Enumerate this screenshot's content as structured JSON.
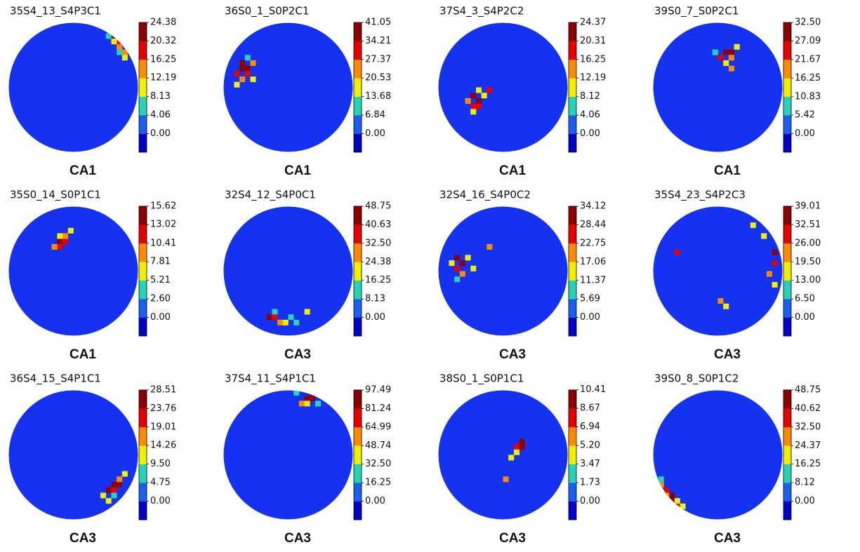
{
  "colormap": [
    "#0000c8",
    "#1c5ff0",
    "#27d3b5",
    "#f0f000",
    "#ff8c00",
    "#e60000",
    "#8b0000"
  ],
  "region_colors": {
    "CA1": "#5b8fd0",
    "CA3": "#953735"
  },
  "chart_data": [
    {
      "type": "heatmap",
      "title": "35S4_13_S4P3C1",
      "region": "CA1",
      "x": [
        19,
        20,
        20,
        21,
        19,
        20,
        21,
        18
      ],
      "y": [
        2,
        3,
        4,
        5,
        3,
        5,
        6,
        2
      ],
      "values": [
        24,
        20,
        16,
        14,
        10,
        8,
        12,
        6
      ],
      "zticks": [
        {
          "value": 0,
          "label": "0.00"
        },
        4.06,
        8.13,
        12.19,
        16.25,
        20.32,
        24.38
      ]
    },
    {
      "type": "heatmap",
      "title": "36S0_1_S0P2C1",
      "region": "CA1",
      "x": [
        3,
        3,
        4,
        2,
        4,
        5,
        3,
        5,
        2,
        4
      ],
      "y": [
        7,
        8,
        8,
        9,
        9,
        7,
        10,
        10,
        11,
        6
      ],
      "values": [
        41,
        38,
        35,
        30,
        28,
        22,
        25,
        14,
        18,
        10
      ],
      "zticks": [
        {
          "value": 0,
          "label": "0.00"
        },
        6.84,
        13.68,
        20.53,
        27.37,
        34.21,
        41.05
      ]
    },
    {
      "type": "heatmap",
      "title": "37S4_3_S4P2C2",
      "region": "CA1",
      "x": [
        6,
        7,
        6,
        7,
        5,
        8,
        6,
        7,
        9
      ],
      "y": [
        13,
        14,
        15,
        15,
        14,
        13,
        16,
        12,
        12
      ],
      "values": [
        24,
        22,
        20,
        17,
        13,
        12,
        10,
        9,
        20
      ],
      "zticks": [
        {
          "value": 0,
          "label": "0.00"
        },
        4.06,
        8.12,
        12.19,
        16.25,
        20.31,
        24.37
      ]
    },
    {
      "type": "heatmap",
      "title": "39S0_7_S0P2C1",
      "region": "CA1",
      "x": [
        13,
        14,
        12,
        14,
        15,
        13,
        11,
        14
      ],
      "y": [
        5,
        5,
        6,
        6,
        4,
        7,
        5,
        8
      ],
      "values": [
        32,
        28,
        22,
        20,
        14,
        12,
        10,
        18
      ],
      "zticks": [
        {
          "value": 0,
          "label": "0.00"
        },
        5.42,
        10.83,
        16.25,
        21.67,
        27.09,
        {
          "value": 32.5,
          "label": "32.50"
        }
      ]
    },
    {
      "type": "heatmap",
      "title": "35S0_14_S0P1C1",
      "region": "CA1",
      "x": [
        9,
        10,
        9,
        8,
        10,
        9,
        11
      ],
      "y": [
        6,
        6,
        7,
        7,
        5,
        5,
        4
      ],
      "values": [
        15.6,
        13,
        12,
        10,
        8,
        6,
        6
      ],
      "zticks": [
        {
          "value": 0,
          "label": "0.00"
        },
        {
          "value": 2.6,
          "label": "2.60"
        },
        5.21,
        7.81,
        10.41,
        13.02,
        15.62
      ]
    },
    {
      "type": "heatmap",
      "title": "32S4_12_S4P0C1",
      "region": "CA3",
      "x": [
        8,
        9,
        10,
        11,
        12,
        9,
        13,
        15
      ],
      "y": [
        20,
        20,
        21,
        21,
        20,
        19,
        21,
        19
      ],
      "values": [
        48,
        40,
        30,
        20,
        14,
        12,
        10,
        20
      ],
      "zticks": [
        {
          "value": 0,
          "label": "0.00"
        },
        8.13,
        16.25,
        24.38,
        {
          "value": 32.5,
          "label": "32.50"
        },
        40.63,
        48.75
      ]
    },
    {
      "type": "heatmap",
      "title": "32S4_16_S4P0C2",
      "region": "CA3",
      "x": [
        3,
        4,
        3,
        4,
        2,
        5,
        3,
        6,
        9
      ],
      "y": [
        9,
        10,
        11,
        12,
        10,
        9,
        13,
        11,
        7
      ],
      "values": [
        34,
        30,
        26,
        20,
        16,
        12,
        10,
        14,
        22
      ],
      "zticks": [
        {
          "value": 0,
          "label": "0.00"
        },
        5.69,
        11.37,
        17.06,
        22.75,
        28.44,
        34.12
      ]
    },
    {
      "type": "heatmap",
      "title": "35S4_23_S4P2C3",
      "region": "CA3",
      "x": [
        22,
        22,
        21,
        22,
        20,
        4,
        12,
        13,
        18
      ],
      "y": [
        8,
        10,
        12,
        14,
        5,
        8,
        17,
        18,
        3
      ],
      "values": [
        39,
        30,
        22,
        18,
        14,
        30,
        20,
        16,
        16
      ],
      "zticks": [
        {
          "value": 0,
          "label": "0.00"
        },
        {
          "value": 6.5,
          "label": "6.50"
        },
        {
          "value": 13,
          "label": "13.00"
        },
        {
          "value": 19.5,
          "label": "19.50"
        },
        {
          "value": 26,
          "label": "26.00"
        },
        32.51,
        39.01
      ]
    },
    {
      "type": "heatmap",
      "title": "36S4_15_S4P1C1",
      "region": "CA3",
      "x": [
        19,
        20,
        18,
        19,
        20,
        17,
        18,
        21,
        19
      ],
      "y": [
        17,
        17,
        18,
        18,
        16,
        19,
        20,
        15,
        19
      ],
      "values": [
        28,
        26,
        24,
        22,
        19,
        14,
        12,
        10,
        9
      ],
      "zticks": [
        {
          "value": 0,
          "label": "0.00"
        },
        4.75,
        {
          "value": 9.5,
          "label": "9.50"
        },
        14.26,
        19.01,
        23.76,
        28.51
      ]
    },
    {
      "type": "heatmap",
      "title": "37S4_11_S4P1C1",
      "region": "CA3",
      "x": [
        15,
        16,
        14,
        15,
        17,
        13
      ],
      "y": [
        1,
        1,
        2,
        2,
        2,
        0
      ],
      "values": [
        97,
        85,
        60,
        45,
        30,
        20
      ],
      "zticks": [
        {
          "value": 0,
          "label": "0.00"
        },
        16.25,
        {
          "value": 32.5,
          "label": "32.50"
        },
        48.74,
        64.99,
        81.24,
        97.49
      ]
    },
    {
      "type": "heatmap",
      "title": "38S0_1_S0P1C1",
      "region": "CA3",
      "x": [
        15,
        15,
        14,
        14,
        13,
        12
      ],
      "y": [
        9,
        10,
        10,
        11,
        12,
        16
      ],
      "values": [
        10.4,
        9,
        7,
        5,
        4,
        6
      ],
      "zticks": [
        {
          "value": 0,
          "label": "0.00"
        },
        1.73,
        3.47,
        {
          "value": 5.2,
          "label": "5.20"
        },
        6.94,
        8.67,
        10.41
      ]
    },
    {
      "type": "heatmap",
      "title": "39S0_8_S0P1C2",
      "region": "CA3",
      "x": [
        2,
        3,
        3,
        4,
        1,
        2,
        4,
        5,
        1
      ],
      "y": [
        18,
        19,
        20,
        21,
        17,
        19,
        20,
        21,
        16
      ],
      "values": [
        40,
        48,
        44,
        36,
        30,
        28,
        24,
        18,
        14
      ],
      "zticks": [
        {
          "value": 0,
          "label": "0.00"
        },
        8.12,
        16.25,
        24.37,
        {
          "value": 32.5,
          "label": "32.50"
        },
        40.62,
        48.75
      ]
    }
  ]
}
